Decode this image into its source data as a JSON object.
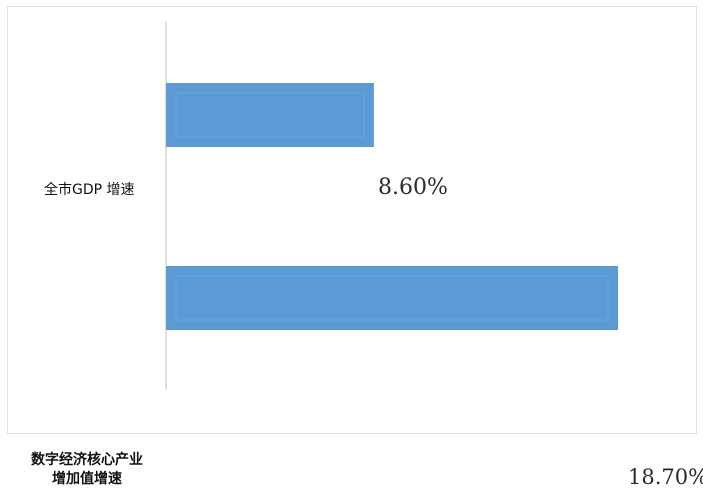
{
  "chart_data": {
    "type": "bar",
    "orientation": "horizontal",
    "categories": [
      "全市GDP 增速",
      "数字经济核心产业增加值增速"
    ],
    "values": [
      8.6,
      18.7
    ],
    "value_labels": [
      "8.60%",
      "18.70%"
    ],
    "unit": "%",
    "xlim": [
      0,
      20
    ],
    "grid": false,
    "legend": "none",
    "bar_color": "#5b9bd5",
    "title": "",
    "xlabel": "",
    "ylabel": ""
  },
  "labels": {
    "category_1": "全市GDP 增速",
    "category_2_line1": "数字经济核心产业",
    "category_2_line2": "增加值增速"
  }
}
